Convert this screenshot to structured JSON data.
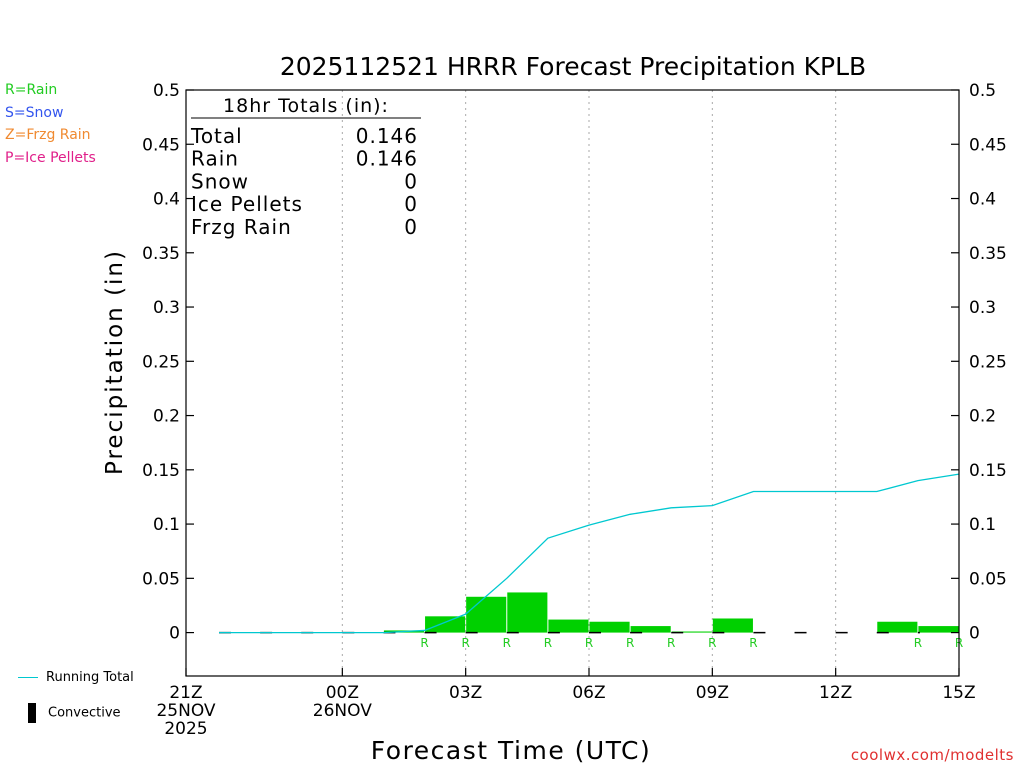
{
  "title": "2025112521 HRRR Forecast Precipitation KPLB",
  "type_legend": [
    {
      "label": "R=Rain",
      "color": "#22cc22"
    },
    {
      "label": "S=Snow",
      "color": "#3355ee"
    },
    {
      "label": "Z=Frzg Rain",
      "color": "#f08a30"
    },
    {
      "label": "P=Ice Pellets",
      "color": "#e0208a"
    }
  ],
  "totals_box": {
    "header": "18hr Totals (in):",
    "rows": [
      {
        "label": "Total",
        "value": "0.146"
      },
      {
        "label": "Rain",
        "value": "0.146"
      },
      {
        "label": "Snow",
        "value": "0"
      },
      {
        "label": "Ice Pellets",
        "value": "0"
      },
      {
        "label": "Frzg Rain",
        "value": "0"
      }
    ]
  },
  "bottom_legend": {
    "running_total": "Running Total",
    "convective": "Convective"
  },
  "watermark": "coolwx.com/modelts",
  "colors": {
    "bars": "#00d000",
    "running_total": "#00c8d0",
    "convective": "#000000",
    "rain_marker": "#22cc22"
  },
  "chart_data": {
    "type": "bar",
    "title": "2025112521 HRRR Forecast Precipitation KPLB",
    "xlabel": "Forecast Time (UTC)",
    "ylabel": "Precipitation (in)",
    "ylim": [
      -0.04,
      0.5
    ],
    "yticks": [
      "0",
      "0.05",
      "0.1",
      "0.15",
      "0.2",
      "0.25",
      "0.3",
      "0.35",
      "0.4",
      "0.45",
      "0.5"
    ],
    "xlim_hours": [
      0,
      18
    ],
    "xticks": [
      {
        "hour": 0,
        "label": [
          "21Z",
          "25NOV",
          "2025"
        ]
      },
      {
        "hour": 3,
        "label": [
          "00Z",
          "26NOV"
        ]
      },
      {
        "hour": 6,
        "label": [
          "03Z"
        ]
      },
      {
        "hour": 9,
        "label": [
          "06Z"
        ]
      },
      {
        "hour": 12,
        "label": [
          "09Z"
        ]
      },
      {
        "hour": 15,
        "label": [
          "12Z"
        ]
      },
      {
        "hour": 18,
        "label": [
          "15Z"
        ]
      }
    ],
    "grid_x": true,
    "hourly_precip": [
      {
        "hour": 1,
        "value": 0,
        "type": ""
      },
      {
        "hour": 2,
        "value": 0,
        "type": ""
      },
      {
        "hour": 3,
        "value": 0,
        "type": ""
      },
      {
        "hour": 4,
        "value": 0,
        "type": ""
      },
      {
        "hour": 5,
        "value": 0.002,
        "type": "R"
      },
      {
        "hour": 6,
        "value": 0.015,
        "type": "R"
      },
      {
        "hour": 7,
        "value": 0.033,
        "type": "R"
      },
      {
        "hour": 8,
        "value": 0.037,
        "type": "R"
      },
      {
        "hour": 9,
        "value": 0.012,
        "type": "R"
      },
      {
        "hour": 10,
        "value": 0.01,
        "type": "R"
      },
      {
        "hour": 11,
        "value": 0.006,
        "type": "R"
      },
      {
        "hour": 12,
        "value": 0.001,
        "type": "R"
      },
      {
        "hour": 13,
        "value": 0.013,
        "type": "R"
      },
      {
        "hour": 14,
        "value": 0,
        "type": ""
      },
      {
        "hour": 15,
        "value": 0,
        "type": ""
      },
      {
        "hour": 16,
        "value": 0,
        "type": ""
      },
      {
        "hour": 17,
        "value": 0.01,
        "type": "R"
      },
      {
        "hour": 18,
        "value": 0.006,
        "type": "R"
      }
    ],
    "running_total": [
      {
        "hour": 1,
        "value": 0
      },
      {
        "hour": 2,
        "value": 0
      },
      {
        "hour": 3,
        "value": 0
      },
      {
        "hour": 4,
        "value": 0
      },
      {
        "hour": 5,
        "value": 0.002
      },
      {
        "hour": 6,
        "value": 0.017
      },
      {
        "hour": 7,
        "value": 0.05
      },
      {
        "hour": 8,
        "value": 0.087
      },
      {
        "hour": 9,
        "value": 0.099
      },
      {
        "hour": 10,
        "value": 0.109
      },
      {
        "hour": 11,
        "value": 0.115
      },
      {
        "hour": 12,
        "value": 0.117
      },
      {
        "hour": 13,
        "value": 0.13
      },
      {
        "hour": 14,
        "value": 0.13
      },
      {
        "hour": 15,
        "value": 0.13
      },
      {
        "hour": 16,
        "value": 0.13
      },
      {
        "hour": 17,
        "value": 0.14
      },
      {
        "hour": 18,
        "value": 0.146
      }
    ]
  }
}
